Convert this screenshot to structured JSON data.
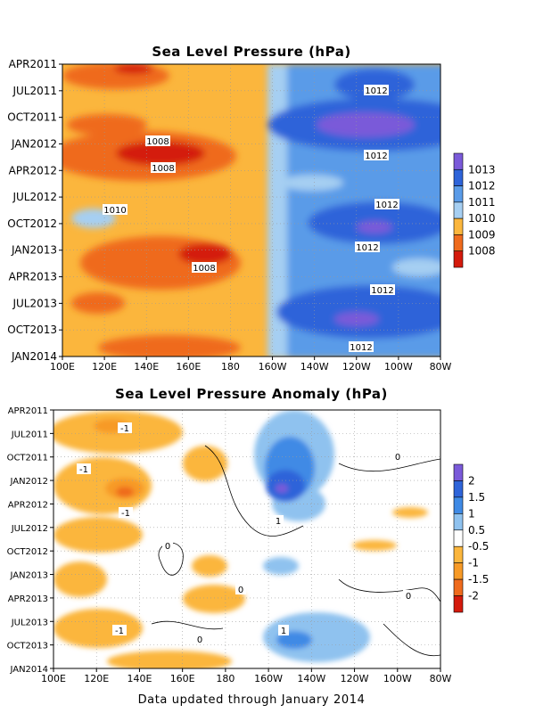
{
  "footer": "Data updated through January 2014",
  "chart_data": [
    {
      "type": "heatmap",
      "title": "Sea Level Pressure (hPa)",
      "x_ticks": [
        "100E",
        "120E",
        "140E",
        "160E",
        "180",
        "160W",
        "140W",
        "120W",
        "100W",
        "80W"
      ],
      "y_ticks": [
        "APR2011",
        "JUL2011",
        "OCT2011",
        "JAN2012",
        "APR2012",
        "JUL2012",
        "OCT2012",
        "JAN2013",
        "APR2013",
        "JUL2013",
        "OCT2013",
        "JAN2014"
      ],
      "colorbar": {
        "levels": [
          "1013",
          "1012",
          "1011",
          "1010",
          "1009",
          "1008"
        ],
        "colors": [
          "#7a5ad9",
          "#2e64d9",
          "#5a9be8",
          "#a6cff2",
          "#fbb63d",
          "#ef6b1d",
          "#d41a0c"
        ]
      },
      "contour_labels": [
        "1012",
        "1008",
        "1008",
        "1012",
        "1010",
        "1012",
        "1012",
        "1008",
        "1012",
        "1012"
      ],
      "grid": true,
      "features": [
        {
          "region": "100E-180",
          "value_range": "1008-1010",
          "description": "low pressure, minima near 160E in JAN2012 and JAN2013"
        },
        {
          "region": "140W-100W",
          "value_range": "1012-1013",
          "description": "high pressure, maxima around OCT of each year"
        }
      ]
    },
    {
      "type": "heatmap",
      "title": "Sea Level Pressure Anomaly (hPa)",
      "x_ticks": [
        "100E",
        "120E",
        "140E",
        "160E",
        "180",
        "160W",
        "140W",
        "120W",
        "100W",
        "80W"
      ],
      "y_ticks": [
        "APR2011",
        "JUL2011",
        "OCT2011",
        "JAN2012",
        "APR2012",
        "JUL2012",
        "OCT2012",
        "JAN2013",
        "APR2013",
        "JUL2013",
        "OCT2013",
        "JAN2014"
      ],
      "colorbar": {
        "levels": [
          "2",
          "1.5",
          "1",
          "0.5",
          "-0.5",
          "-1",
          "-1.5",
          "-2"
        ],
        "colors": [
          "#7a5ad9",
          "#2e64d9",
          "#3f8ae5",
          "#8fc2ef",
          "#ffffff",
          "#fbb63d",
          "#f79a26",
          "#ef6b1d",
          "#d41a0c"
        ]
      },
      "contour_labels": [
        "-1",
        "-1",
        "-1",
        "0",
        "1",
        "0",
        "0",
        "0",
        "-1",
        "0",
        "1"
      ],
      "grid": true,
      "features": [
        {
          "region": "160W-140W",
          "value_range": "1 to 2",
          "description": "positive anomaly peaking near JAN2012"
        },
        {
          "region": "100E-160E",
          "value_range": "-1.5 to -0.5",
          "description": "negative anomalies, strongest 2011-2012"
        }
      ]
    }
  ]
}
